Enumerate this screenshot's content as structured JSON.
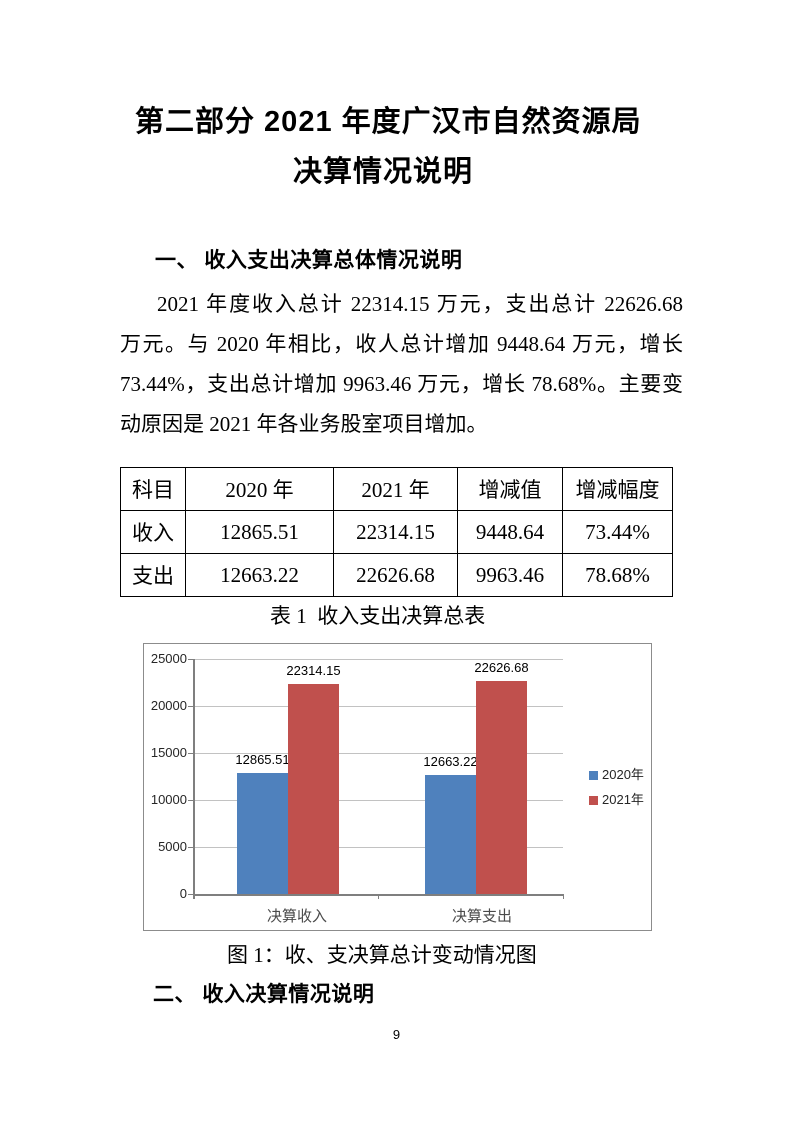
{
  "document": {
    "title_line1": "第二部分 2021 年度广汉市自然资源局",
    "title_line2": "决算情况说明",
    "section1_heading": "一、 收入支出决算总体情况说明",
    "paragraph_lines": [
      "2021 年度收入总计 22314.15 万元，支出总计 22626.68",
      "万元。与 2020 年相比，收人总计增加 9448.64 万元，增长",
      "73.44%，支出总计增加 9963.46 万元，增长 78.68%。主要变",
      "动原因是 2021 年各业务股室项目增加。"
    ],
    "table": {
      "headers": [
        "科目",
        "2020 年",
        "2021 年",
        "增减值",
        "增减幅度"
      ],
      "rows": [
        [
          "收入",
          "12865.51",
          "22314.15",
          "9448.64",
          "73.44%"
        ],
        [
          "支出",
          "12663.22",
          "22626.68",
          "9963.46",
          "78.68%"
        ]
      ]
    },
    "table_caption": "表 1  收入支出决算总表",
    "figure_caption": "图 1：收、支决算总计变动情况图",
    "section2_heading": "二、 收入决算情况说明",
    "page_number": "9"
  },
  "chart_data": {
    "type": "bar",
    "categories": [
      "决算收入",
      "决算支出"
    ],
    "series": [
      {
        "name": "2020年",
        "color": "#4F81BD",
        "values": [
          12865.51,
          12663.22
        ]
      },
      {
        "name": "2021年",
        "color": "#C0504D",
        "values": [
          22314.15,
          22626.68
        ]
      }
    ],
    "ylim": [
      0,
      25000
    ],
    "yticks": [
      0,
      5000,
      10000,
      15000,
      20000,
      25000
    ],
    "grid": true,
    "legend_position": "right",
    "title": "",
    "xlabel": "",
    "ylabel": ""
  }
}
